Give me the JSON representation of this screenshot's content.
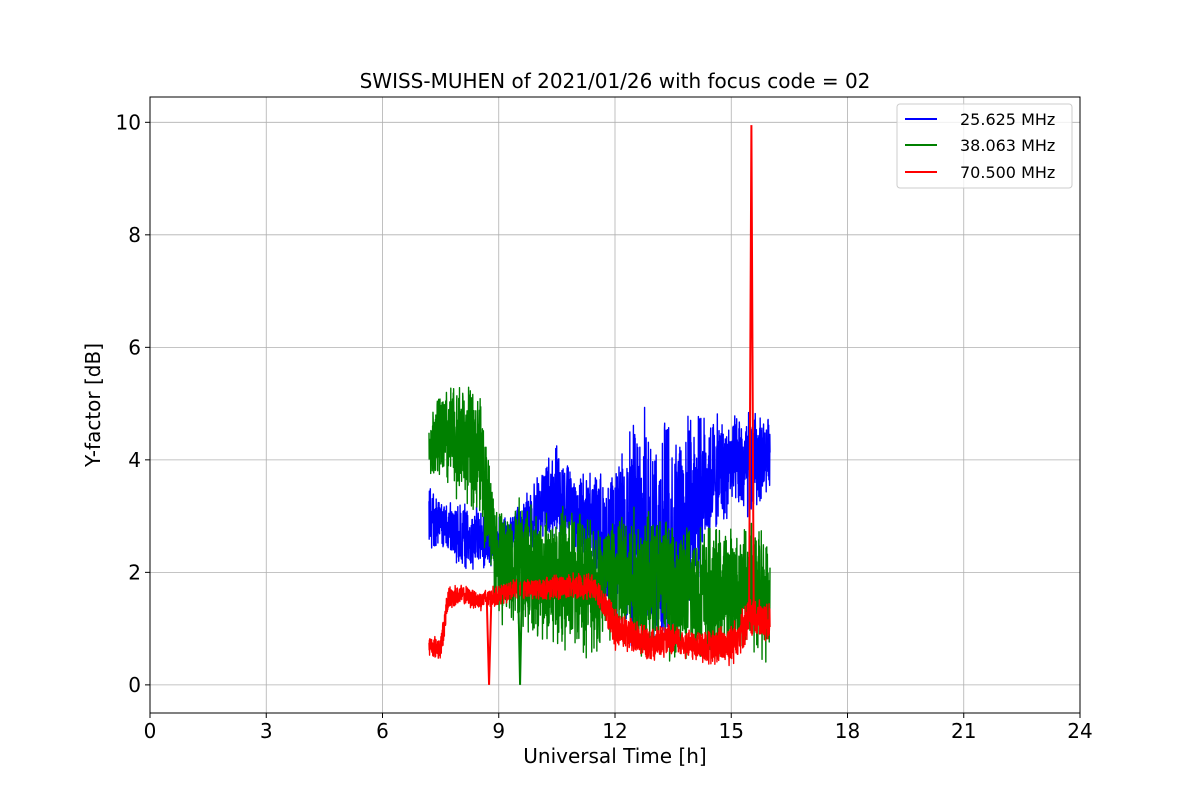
{
  "chart_data": {
    "type": "line",
    "title": "SWISS-MUHEN of 2021/01/26 with focus code = 02",
    "xlabel": "Universal Time [h]",
    "ylabel": "Y-factor [dB]",
    "xlim": [
      0,
      24
    ],
    "ylim": [
      -0.5,
      10.45
    ],
    "xticks": [
      0,
      3,
      6,
      9,
      12,
      15,
      18,
      21,
      24
    ],
    "yticks": [
      0,
      2,
      4,
      6,
      8,
      10
    ],
    "grid": true,
    "legend_position": "top-right",
    "series": [
      {
        "name": "25.625 MHz",
        "color": "#0000ff",
        "x": [
          7.2,
          7.5,
          8.0,
          8.5,
          9.0,
          9.5,
          10.0,
          10.5,
          11.0,
          11.5,
          12.0,
          12.5,
          13.0,
          13.5,
          14.0,
          14.5,
          15.0,
          15.5,
          16.0
        ],
        "y_min": [
          2.4,
          2.4,
          2.0,
          2.0,
          2.0,
          2.4,
          2.4,
          2.6,
          2.2,
          1.8,
          0.6,
          0.4,
          0.2,
          0.5,
          1.5,
          2.5,
          3.0,
          2.8,
          3.5
        ],
        "y_max": [
          3.6,
          3.3,
          3.3,
          3.2,
          3.0,
          3.2,
          3.8,
          4.4,
          3.8,
          3.9,
          3.9,
          5.0,
          5.0,
          4.9,
          4.9,
          4.9,
          4.8,
          5.0,
          4.8
        ]
      },
      {
        "name": "38.063 MHz",
        "color": "#008000",
        "x": [
          7.2,
          7.5,
          8.0,
          8.5,
          9.0,
          9.5,
          10.0,
          10.5,
          11.0,
          11.5,
          12.0,
          12.5,
          13.0,
          13.5,
          14.0,
          14.5,
          15.0,
          15.5,
          16.0
        ],
        "y_min": [
          3.8,
          3.4,
          3.2,
          2.9,
          1.0,
          0.9,
          0.7,
          0.5,
          0.5,
          0.4,
          0.5,
          0.3,
          0.5,
          0.4,
          0.3,
          0.2,
          0.5,
          0.5,
          0.3
        ],
        "y_max": [
          4.8,
          5.4,
          5.5,
          5.3,
          3.2,
          3.4,
          3.3,
          3.3,
          3.3,
          3.2,
          3.2,
          3.3,
          3.3,
          3.0,
          3.0,
          2.9,
          2.9,
          3.2,
          2.6
        ]
      },
      {
        "name": "70.500 MHz",
        "color": "#ff0000",
        "x": [
          7.2,
          7.5,
          7.7,
          8.0,
          8.5,
          9.0,
          9.5,
          10.0,
          10.5,
          11.0,
          11.5,
          12.0,
          12.5,
          13.0,
          13.5,
          14.0,
          14.5,
          15.0,
          15.5,
          16.0
        ],
        "y_min": [
          0.5,
          0.4,
          1.3,
          1.4,
          1.3,
          1.4,
          1.5,
          1.5,
          1.5,
          1.5,
          1.5,
          0.6,
          0.5,
          0.4,
          0.5,
          0.4,
          0.3,
          0.3,
          0.8,
          0.7
        ],
        "y_max": [
          0.9,
          0.9,
          1.8,
          1.8,
          1.7,
          1.8,
          1.9,
          1.9,
          2.0,
          2.0,
          2.0,
          1.4,
          1.2,
          1.1,
          1.1,
          1.0,
          1.0,
          1.2,
          1.6,
          1.5
        ]
      }
    ],
    "annotations": [
      {
        "series": "70.500 MHz",
        "x": 8.75,
        "y": 0.0,
        "note": "dip"
      },
      {
        "series": "38.063 MHz",
        "x": 9.55,
        "y": 0.0,
        "note": "dip"
      },
      {
        "series": "70.500 MHz",
        "x": 15.52,
        "y": 9.95,
        "note": "spike"
      }
    ]
  }
}
